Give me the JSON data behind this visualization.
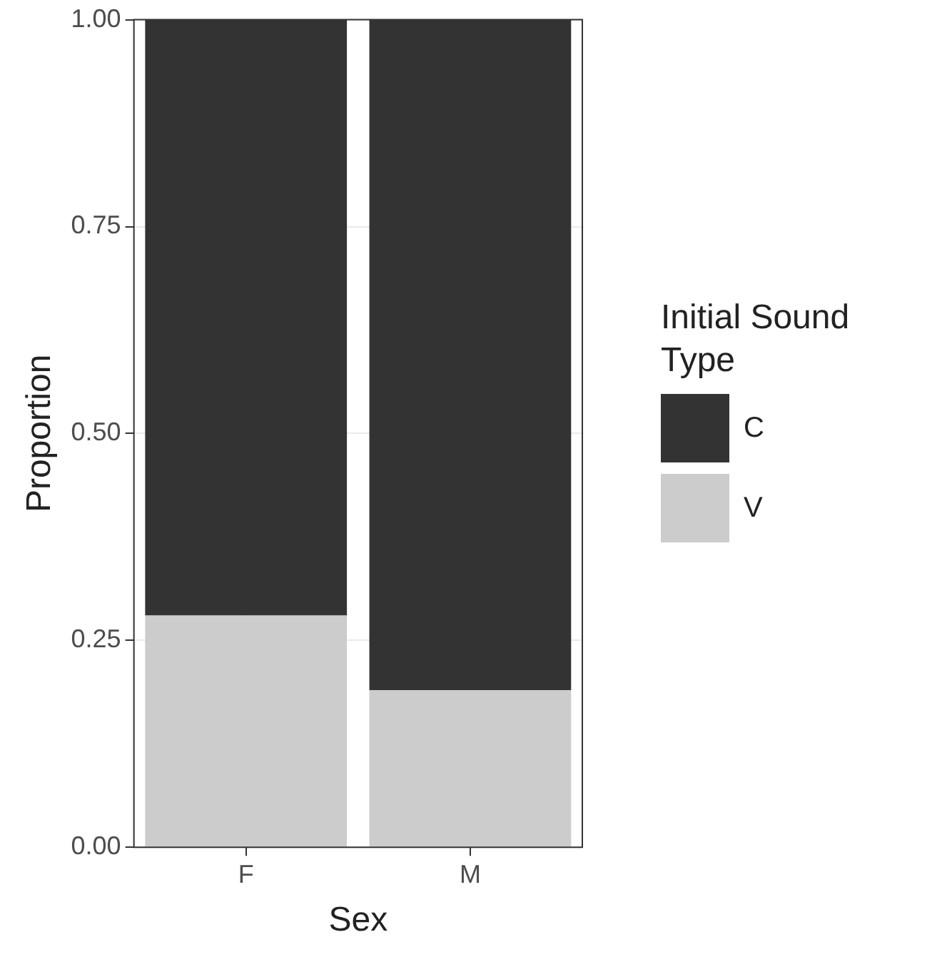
{
  "chart_data": {
    "type": "bar",
    "stacked": true,
    "xlabel": "Sex",
    "ylabel": "Proportion",
    "legend_title": "Initial Sound Type",
    "categories": [
      "F",
      "M"
    ],
    "series": [
      {
        "name": "V",
        "color": "#cccccc",
        "values": [
          0.28,
          0.19
        ]
      },
      {
        "name": "C",
        "color": "#333333",
        "values": [
          0.72,
          0.81
        ]
      }
    ],
    "ylim": [
      0,
      1
    ],
    "yticks": [
      {
        "value": 0,
        "label": "0.00"
      },
      {
        "value": 0.25,
        "label": "0.25"
      },
      {
        "value": 0.5,
        "label": "0.50"
      },
      {
        "value": 0.75,
        "label": "0.75"
      },
      {
        "value": 1,
        "label": "1.00"
      }
    ],
    "grid": true,
    "legend": "right"
  }
}
